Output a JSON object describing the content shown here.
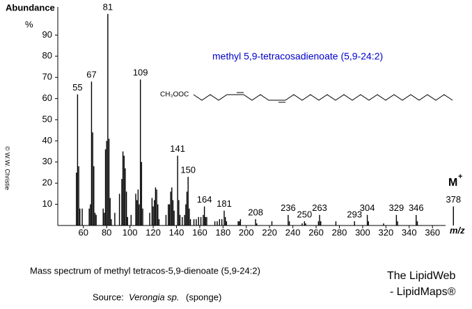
{
  "chart_data": {
    "type": "spectrum",
    "y_label": "Abundance",
    "y_unit": "%",
    "x_label": "m/z",
    "compound": "methyl 5,9-tetracosadienoate (5,9-24:2)",
    "structure_label": "CH₃OOC",
    "molecular_ion": {
      "label": "M",
      "charge": "+"
    },
    "copyright": "© W.W. Christie",
    "caption": "Mass spectrum of methyl tetracos-5,9-dienoate (5,9-24:2)",
    "source": {
      "prefix": "Source:",
      "species": "Verongia sp.",
      "suffix": "(sponge)"
    },
    "credit": [
      "The LipidWeb",
      "- LipidMaps®"
    ],
    "color": "#000000",
    "xlim": [
      38,
      385
    ],
    "ylim": [
      0,
      100
    ],
    "xticks": [
      60,
      80,
      100,
      120,
      140,
      160,
      180,
      200,
      220,
      240,
      260,
      280,
      300,
      320,
      340,
      360
    ],
    "yticks": [
      10,
      20,
      30,
      40,
      50,
      60,
      70,
      80,
      90
    ],
    "x": [
      54,
      55,
      56,
      57,
      59,
      65,
      66,
      67,
      68,
      69,
      70,
      71,
      77,
      78,
      79,
      80,
      81,
      82,
      83,
      84,
      87,
      91,
      93,
      94,
      95,
      96,
      97,
      98,
      101,
      105,
      106,
      107,
      108,
      109,
      110,
      111,
      117,
      119,
      120,
      121,
      122,
      123,
      124,
      125,
      131,
      133,
      134,
      135,
      136,
      137,
      138,
      141,
      142,
      143,
      145,
      147,
      148,
      149,
      150,
      151,
      152,
      155,
      157,
      159,
      161,
      163,
      164,
      165,
      166,
      173,
      175,
      177,
      179,
      181,
      182,
      183,
      193,
      194,
      195,
      208,
      209,
      222,
      236,
      237,
      248,
      250,
      251,
      262,
      263,
      264,
      277,
      293,
      304,
      305,
      318,
      329,
      330,
      346,
      347,
      378
    ],
    "values": [
      25,
      62,
      28,
      8,
      8,
      8,
      10,
      68,
      44,
      28,
      6,
      5,
      8,
      6,
      36,
      40,
      100,
      41,
      13,
      3,
      6,
      15,
      22,
      35,
      33,
      27,
      16,
      4,
      5,
      15,
      12,
      17,
      10,
      69,
      30,
      8,
      6,
      13,
      9,
      12,
      18,
      17,
      10,
      3,
      5,
      10,
      10,
      16,
      18,
      12,
      7,
      33,
      12,
      5,
      4,
      5,
      10,
      16,
      23,
      8,
      3,
      3,
      3,
      4,
      4,
      5,
      9,
      4,
      4,
      2,
      2,
      3,
      3,
      7,
      4,
      2,
      2,
      2,
      3,
      3,
      1,
      2,
      5,
      2,
      1,
      2,
      1,
      2,
      5,
      2,
      2,
      2,
      5,
      2,
      1,
      5,
      2,
      5,
      2,
      9
    ],
    "peak_labels": [
      55,
      67,
      81,
      109,
      141,
      150,
      164,
      181,
      208,
      236,
      250,
      263,
      293,
      304,
      329,
      346,
      378
    ]
  }
}
